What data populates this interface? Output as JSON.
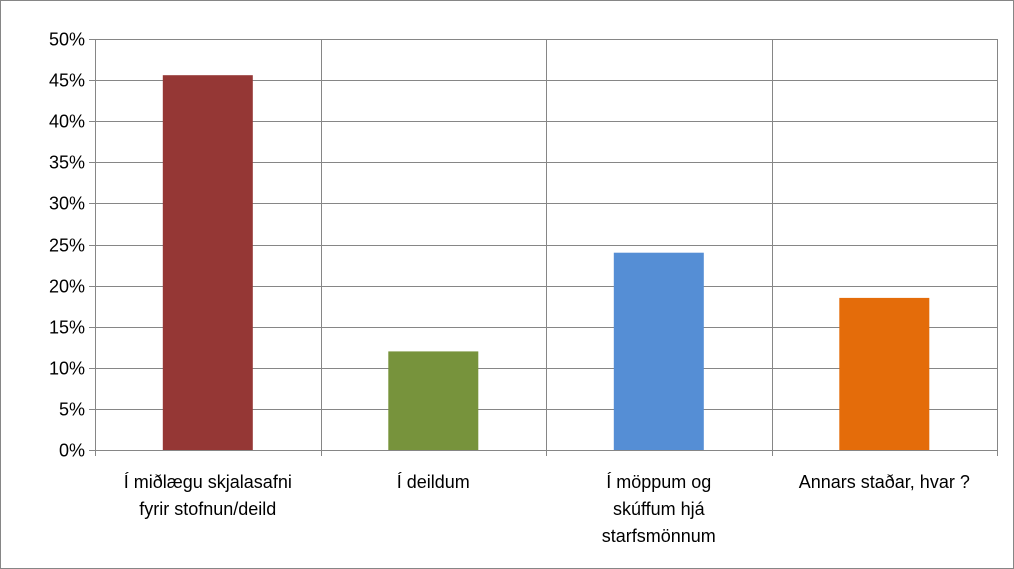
{
  "chart_data": {
    "type": "bar",
    "title": "",
    "xlabel": "",
    "ylabel": "",
    "categories": [
      [
        "Í miðlægu skjalasafni",
        "fyrir stofnun/deild"
      ],
      [
        "Í deildum"
      ],
      [
        "Í möppum og",
        "skúffum hjá",
        "starfsmönnum"
      ],
      [
        "Annars staðar, hvar ?"
      ]
    ],
    "values": [
      0.456,
      0.12,
      0.24,
      0.185
    ],
    "colors": [
      "#953735",
      "#77933C",
      "#558ED5",
      "#E46C0A"
    ],
    "ylim": [
      0,
      0.5
    ],
    "yticks": [
      0,
      0.05,
      0.1,
      0.15,
      0.2,
      0.25,
      0.3,
      0.35,
      0.4,
      0.45,
      0.5
    ],
    "ytick_labels": [
      "0%",
      "5%",
      "10%",
      "15%",
      "20%",
      "25%",
      "30%",
      "35%",
      "40%",
      "45%",
      "50%"
    ],
    "grid": true,
    "legend": "none"
  }
}
